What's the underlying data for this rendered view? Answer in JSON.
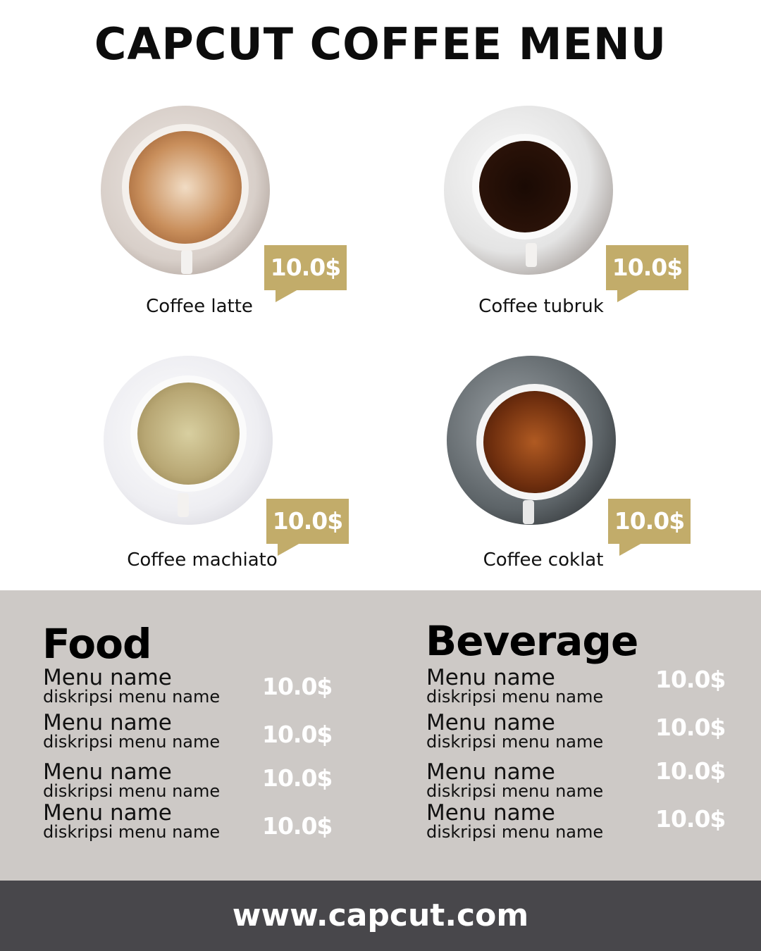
{
  "title": "CAPCUT COFFEE MENU",
  "products": [
    {
      "name": "Coffee latte",
      "price": "10.0$"
    },
    {
      "name": "Coffee tubruk",
      "price": "10.0$"
    },
    {
      "name": "Coffee machiato",
      "price": "10.0$"
    },
    {
      "name": "Coffee coklat",
      "price": "10.0$"
    }
  ],
  "food": {
    "title": "Food",
    "items": [
      {
        "name": "Menu name",
        "desc": "diskripsi menu name",
        "price": "10.0$"
      },
      {
        "name": "Menu name",
        "desc": "diskripsi menu name",
        "price": "10.0$"
      },
      {
        "name": "Menu name",
        "desc": "diskripsi menu name",
        "price": "10.0$"
      },
      {
        "name": "Menu name",
        "desc": "diskripsi menu name",
        "price": "10.0$"
      }
    ]
  },
  "beverage": {
    "title": "Beverage",
    "items": [
      {
        "name": "Menu name",
        "desc": "diskripsi menu name",
        "price": "10.0$"
      },
      {
        "name": "Menu name",
        "desc": "diskripsi menu name",
        "price": "10.0$"
      },
      {
        "name": "Menu name",
        "desc": "diskripsi menu name",
        "price": "10.0$"
      },
      {
        "name": "Menu name",
        "desc": "diskripsi menu name",
        "price": "10.0$"
      }
    ]
  },
  "footer": "www.capcut.com",
  "colors": {
    "accent": "#c2ac6a",
    "band": "#cdc9c6",
    "footer": "#48474b"
  }
}
